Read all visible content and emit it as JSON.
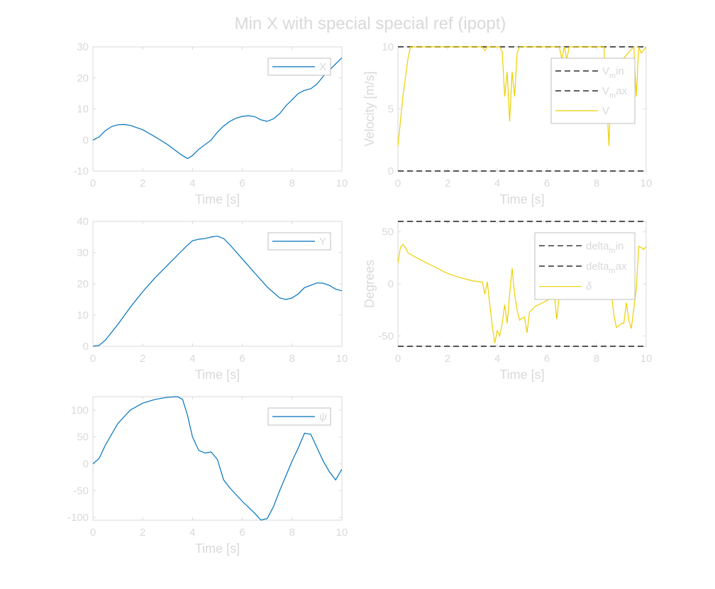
{
  "figure": {
    "title": "Min X with special special ref (ipopt)",
    "text_color": "#d9d9d9",
    "axes_color": "#d9d9d9",
    "legend_border_color": "#bfbfbf"
  },
  "chart_data": [
    {
      "id": "x",
      "type": "line",
      "title": "",
      "xlabel": "Time [s]",
      "ylabel": "",
      "xlim": [
        0,
        10
      ],
      "ylim": [
        -10,
        30
      ],
      "xticks": [
        0,
        2,
        4,
        6,
        8,
        10
      ],
      "yticks": [
        -10,
        0,
        10,
        20,
        30
      ],
      "grid": false,
      "legend_position": "top-right",
      "series": [
        {
          "name": "X",
          "color": "#0072bd",
          "dashed": false,
          "x": [
            0,
            0.25,
            0.5,
            0.75,
            1.0,
            1.25,
            1.5,
            2.0,
            2.5,
            3.0,
            3.5,
            3.8,
            4.0,
            4.25,
            4.5,
            4.75,
            5.0,
            5.25,
            5.5,
            5.75,
            6.0,
            6.25,
            6.5,
            6.75,
            7.0,
            7.25,
            7.5,
            7.75,
            8.0,
            8.25,
            8.5,
            8.75,
            9.0,
            9.25,
            9.5,
            9.75,
            10.0
          ],
          "y": [
            0,
            1,
            3,
            4.3,
            4.9,
            5,
            4.7,
            3.3,
            1,
            -1.5,
            -4.5,
            -6,
            -5,
            -3,
            -1.5,
            0,
            2.5,
            4.5,
            6,
            7,
            7.6,
            7.8,
            7.5,
            6.5,
            6,
            6.8,
            8.5,
            11,
            13,
            15,
            16,
            16.5,
            18,
            20.5,
            22.5,
            24.5,
            26.5
          ]
        }
      ]
    },
    {
      "id": "y",
      "type": "line",
      "title": "",
      "xlabel": "Time [s]",
      "ylabel": "",
      "xlim": [
        0,
        10
      ],
      "ylim": [
        0,
        40
      ],
      "xticks": [
        0,
        2,
        4,
        6,
        8,
        10
      ],
      "yticks": [
        0,
        10,
        20,
        30,
        40
      ],
      "grid": false,
      "legend_position": "top-right",
      "series": [
        {
          "name": "Y",
          "color": "#0072bd",
          "dashed": false,
          "x": [
            0,
            0.25,
            0.5,
            0.75,
            1.0,
            1.5,
            2.0,
            2.5,
            3.0,
            3.5,
            3.75,
            4.0,
            4.25,
            4.5,
            4.75,
            5.0,
            5.25,
            5.5,
            6.0,
            6.5,
            7.0,
            7.5,
            7.75,
            8.0,
            8.25,
            8.5,
            9.0,
            9.25,
            9.5,
            9.75,
            10.0
          ],
          "y": [
            0,
            0.3,
            2,
            4.5,
            7,
            12.5,
            17.5,
            22,
            26,
            30,
            32,
            33.8,
            34.3,
            34.5,
            35,
            35.3,
            34.5,
            32.5,
            28,
            23.5,
            19,
            15.5,
            15,
            15.5,
            16.8,
            18.8,
            20.3,
            20.2,
            19.5,
            18.3,
            17.8
          ]
        }
      ]
    },
    {
      "id": "psi",
      "type": "line",
      "title": "",
      "xlabel": "Time [s]",
      "ylabel": "",
      "xlim": [
        0,
        10
      ],
      "ylim": [
        -105,
        125
      ],
      "xticks": [
        0,
        2,
        4,
        6,
        8,
        10
      ],
      "yticks": [
        -100,
        -50,
        0,
        50,
        100
      ],
      "grid": false,
      "legend_position": "top-right",
      "series": [
        {
          "name": "ψ",
          "color": "#0072bd",
          "dashed": false,
          "x": [
            0,
            0.25,
            0.5,
            1.0,
            1.5,
            2.0,
            2.5,
            3.0,
            3.4,
            3.6,
            3.8,
            4.0,
            4.25,
            4.5,
            4.75,
            5.0,
            5.25,
            5.5,
            6.0,
            6.5,
            6.75,
            7.0,
            7.25,
            7.5,
            8.0,
            8.25,
            8.5,
            8.75,
            9.0,
            9.25,
            9.5,
            9.75,
            10.0
          ],
          "y": [
            0,
            10,
            35,
            75,
            100,
            113,
            120,
            124,
            125,
            120,
            90,
            50,
            25,
            20,
            22,
            8,
            -30,
            -45,
            -70,
            -92,
            -105,
            -102,
            -80,
            -50,
            5,
            30,
            57,
            55,
            30,
            5,
            -15,
            -30,
            -10
          ]
        }
      ]
    },
    {
      "id": "velocity",
      "type": "line",
      "title": "",
      "xlabel": "Time [s]",
      "ylabel": "Velocity [m/s]",
      "xlim": [
        0,
        10
      ],
      "ylim": [
        0,
        10
      ],
      "xticks": [
        0,
        2,
        4,
        6,
        8,
        10
      ],
      "yticks": [
        0,
        5,
        10
      ],
      "grid": false,
      "legend_position": "top-right",
      "series": [
        {
          "name": "V_min",
          "legend_base": "V",
          "legend_sub": "m",
          "legend_tail": "in",
          "color": "#555555",
          "dashed": true,
          "x": [
            0,
            10
          ],
          "y": [
            0,
            0
          ]
        },
        {
          "name": "V_max",
          "legend_base": "V",
          "legend_sub": "m",
          "legend_tail": "ax",
          "color": "#555555",
          "dashed": true,
          "x": [
            0,
            10
          ],
          "y": [
            10,
            10
          ]
        },
        {
          "name": "V",
          "color": "#edd000",
          "dashed": false,
          "x": [
            0,
            0.2,
            0.4,
            0.5,
            1,
            2,
            3,
            3.4,
            3.5,
            3.6,
            4.1,
            4.2,
            4.3,
            4.4,
            4.5,
            4.6,
            4.7,
            4.8,
            4.9,
            5.0,
            6.5,
            6.6,
            6.7,
            6.8,
            6.9,
            8.3,
            8.4,
            8.5,
            8.6,
            9.5,
            9.6,
            9.7,
            9.8,
            10
          ],
          "y": [
            2,
            6,
            9,
            10,
            10,
            10,
            10,
            10,
            9.7,
            10,
            10,
            9.6,
            6,
            8,
            4,
            8,
            6,
            9.5,
            10,
            10,
            10,
            9,
            10,
            9,
            10,
            10,
            6,
            2,
            8,
            10,
            6,
            10,
            9.5,
            10
          ]
        }
      ]
    },
    {
      "id": "steering",
      "type": "line",
      "title": "",
      "xlabel": "Time [s]",
      "ylabel": "Degrees",
      "xlim": [
        0,
        10
      ],
      "ylim": [
        -60,
        60
      ],
      "xticks": [
        0,
        2,
        4,
        6,
        8,
        10
      ],
      "yticks": [
        -50,
        0,
        50
      ],
      "grid": false,
      "legend_position": "top-right",
      "series": [
        {
          "name": "delta_min",
          "legend_base": "delta",
          "legend_sub": "m",
          "legend_tail": "in",
          "color": "#555555",
          "dashed": true,
          "x": [
            0,
            10
          ],
          "y": [
            -60,
            -60
          ]
        },
        {
          "name": "delta_max",
          "legend_base": "delta",
          "legend_sub": "m",
          "legend_tail": "ax",
          "color": "#555555",
          "dashed": true,
          "x": [
            0,
            10
          ],
          "y": [
            60,
            60
          ]
        },
        {
          "name": "δ",
          "color": "#edd000",
          "dashed": false,
          "x": [
            0,
            0.1,
            0.2,
            0.3,
            0.4,
            0.6,
            1.0,
            1.5,
            2.0,
            2.5,
            3.0,
            3.3,
            3.4,
            3.5,
            3.6,
            3.7,
            3.8,
            3.9,
            4.0,
            4.1,
            4.2,
            4.3,
            4.4,
            4.5,
            4.6,
            4.7,
            4.8,
            4.9,
            5.0,
            5.1,
            5.2,
            5.3,
            5.4,
            5.5,
            6.0,
            6.3,
            6.4,
            6.5,
            6.6,
            6.7,
            6.8,
            8.3,
            8.5,
            8.6,
            8.7,
            8.8,
            8.9,
            9.0,
            9.1,
            9.2,
            9.3,
            9.4,
            9.6,
            9.7,
            9.8,
            9.9,
            10.0
          ],
          "y": [
            20,
            35,
            38,
            35,
            30,
            27,
            22,
            16,
            10,
            6,
            3,
            2,
            2,
            -10,
            2,
            -20,
            -40,
            -57,
            -45,
            -50,
            -38,
            -20,
            -38,
            -10,
            15,
            -10,
            -25,
            -35,
            -33,
            -32,
            -47,
            -27,
            -25,
            -22,
            -16,
            -12,
            -34,
            -10,
            -10,
            -10,
            -10,
            -10,
            -10,
            -10,
            -30,
            -42,
            -40,
            -38,
            -38,
            -18,
            -35,
            -43,
            -5,
            36,
            35,
            33,
            36
          ]
        }
      ]
    }
  ]
}
